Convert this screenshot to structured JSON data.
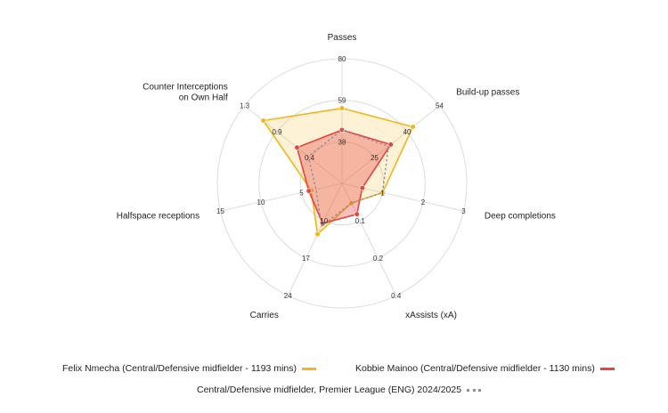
{
  "chart_data": {
    "type": "radar",
    "title": "",
    "axes": [
      {
        "label": "Passes",
        "ticks": [
          "38",
          "59",
          "80"
        ],
        "min": 17,
        "max": 80
      },
      {
        "label": "Build-up passes",
        "ticks": [
          "25",
          "40",
          "54"
        ],
        "min": 10,
        "max": 54
      },
      {
        "label": "Deep completions",
        "ticks": [
          "1",
          "2",
          "3"
        ],
        "min": 0,
        "max": 3
      },
      {
        "label": "xAssists (xA)",
        "ticks": [
          "0.1",
          "0.2",
          "0.4"
        ],
        "min": 0,
        "max": 0.4
      },
      {
        "label": "Carries",
        "ticks": [
          "10",
          "17",
          "24"
        ],
        "min": 3,
        "max": 24
      },
      {
        "label": "Halfspace receptions",
        "ticks": [
          "5",
          "10",
          "15"
        ],
        "min": 0,
        "max": 15
      },
      {
        "label": "Counter Interceptions on Own Half",
        "ticks": [
          "0.4",
          "0.9",
          "1.3"
        ],
        "min": 0,
        "max": 1.3
      }
    ],
    "series": [
      {
        "name": "Felix Nmecha (Central/Defensive midfielder - 1193 mins)",
        "values": [
          55,
          42,
          1.0,
          0.07,
          12.5,
          3.8,
          1.05
        ],
        "color": "#f2b619",
        "fill": "rgba(242,182,25,0.18)",
        "style": "solid"
      },
      {
        "name": "Kobbie Mainoo (Central/Defensive midfielder - 1130 mins)",
        "values": [
          44,
          32,
          0.5,
          0.11,
          10.5,
          4.1,
          0.6
        ],
        "color": "#e5453f",
        "fill": "rgba(229,69,63,0.35)",
        "style": "solid"
      },
      {
        "name": "Central/Defensive midfielder, Premier League (ENG) 2024/2025",
        "values": [
          44,
          31,
          1.0,
          0.07,
          11,
          3.2,
          0.45
        ],
        "color": "#8a8fa3",
        "fill": "none",
        "style": "dotted"
      }
    ],
    "legend_position": "bottom",
    "grid": true
  }
}
